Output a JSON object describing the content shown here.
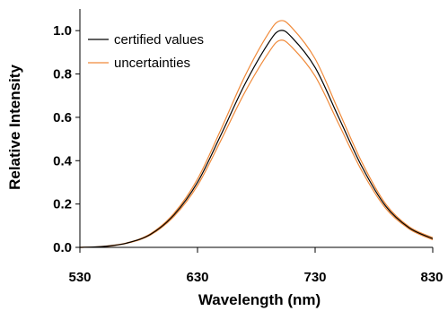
{
  "chart_data": {
    "type": "line",
    "title": "",
    "xlabel": "Wavelength (nm)",
    "ylabel": "Relative Intensity",
    "xlim": [
      530,
      830
    ],
    "ylim": [
      0,
      1.1
    ],
    "x_ticks": [
      "530",
      "630",
      "730",
      "830"
    ],
    "y_ticks": [
      "0.0",
      "0.2",
      "0.4",
      "0.6",
      "0.8",
      "1.0"
    ],
    "grid": false,
    "legend_position": "top-left",
    "x": [
      530,
      550,
      570,
      590,
      610,
      630,
      650,
      670,
      690,
      700,
      710,
      730,
      750,
      770,
      790,
      810,
      830
    ],
    "series": [
      {
        "name": "certified values",
        "color": "#000000",
        "values": [
          0.0,
          0.004,
          0.02,
          0.06,
          0.15,
          0.3,
          0.52,
          0.75,
          0.94,
          1.0,
          0.97,
          0.83,
          0.6,
          0.37,
          0.19,
          0.09,
          0.04
        ]
      },
      {
        "name": "uncertainties",
        "color": "#f08a3a",
        "values": [
          0.0,
          0.005,
          0.021,
          0.063,
          0.157,
          0.315,
          0.545,
          0.787,
          0.985,
          1.045,
          1.015,
          0.87,
          0.63,
          0.39,
          0.2,
          0.095,
          0.045
        ]
      },
      {
        "name": "uncertainties",
        "color": "#f08a3a",
        "values": [
          0.0,
          0.003,
          0.019,
          0.057,
          0.143,
          0.285,
          0.495,
          0.713,
          0.895,
          0.955,
          0.925,
          0.79,
          0.57,
          0.35,
          0.18,
          0.085,
          0.035
        ]
      }
    ]
  }
}
